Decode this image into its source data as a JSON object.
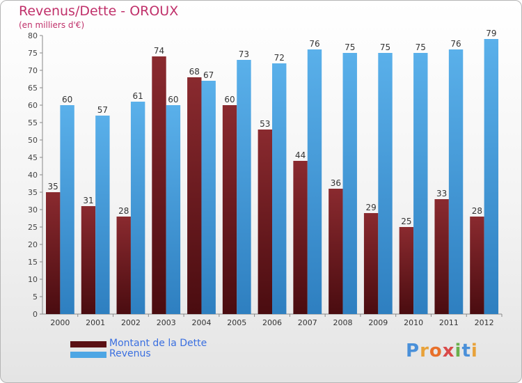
{
  "title": "Revenus/Dette - OROUX",
  "subtitle": "(en milliers d'€)",
  "colors": {
    "dette": "#7b1f24",
    "dette_dark": "#4a0c10",
    "revenus": "#4da6e4",
    "revenus_dark": "#2e7fc0",
    "title": "#c0306a",
    "legend_text": "#3a6fe0"
  },
  "legend": {
    "dette_label": "Montant de la Dette",
    "revenus_label": "Revenus"
  },
  "logo": {
    "text": "Proxiti"
  },
  "chart_data": {
    "type": "bar",
    "title": "Revenus/Dette - OROUX",
    "subtitle": "(en milliers d'€)",
    "categories": [
      "2000",
      "2001",
      "2002",
      "2003",
      "2004",
      "2005",
      "2006",
      "2007",
      "2008",
      "2009",
      "2010",
      "2011",
      "2012"
    ],
    "series": [
      {
        "name": "Montant de la Dette",
        "values": [
          35,
          31,
          28,
          74,
          68,
          60,
          53,
          44,
          36,
          29,
          25,
          33,
          28
        ]
      },
      {
        "name": "Revenus",
        "values": [
          60,
          57,
          61,
          60,
          67,
          73,
          72,
          76,
          75,
          75,
          75,
          76,
          79
        ]
      }
    ],
    "ylim": [
      0,
      80
    ],
    "yticks": [
      0,
      5,
      10,
      15,
      20,
      25,
      30,
      35,
      40,
      45,
      50,
      55,
      60,
      65,
      70,
      75,
      80
    ],
    "grid": false,
    "legend_position": "bottom-left",
    "xlabel": "",
    "ylabel": ""
  }
}
